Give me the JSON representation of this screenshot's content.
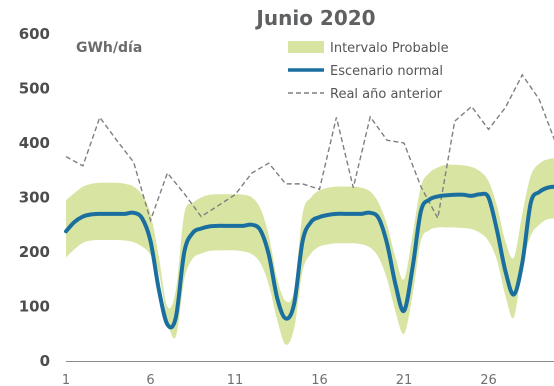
{
  "chart_data": {
    "type": "line",
    "title": "Junio 2020",
    "ylabel": "GWh/día",
    "xlabel": "",
    "ylim": [
      0,
      600
    ],
    "xlim": [
      1,
      30
    ],
    "yticks": [
      0,
      100,
      200,
      300,
      400,
      500,
      600
    ],
    "xticks": [
      1,
      6,
      11,
      16,
      21,
      26
    ],
    "grid": false,
    "legend_position": "top-right",
    "series": [
      {
        "name": "Intervalo Probable",
        "type": "band",
        "color": "#d7e4a2",
        "x": [
          1,
          1.5,
          2,
          2.5,
          3,
          3.5,
          4,
          4.5,
          5,
          5.5,
          6,
          6.5,
          7,
          7.5,
          8,
          8.5,
          9,
          9.5,
          10,
          10.5,
          11,
          11.5,
          12,
          12.5,
          13,
          13.5,
          14,
          14.5,
          15,
          15.5,
          16,
          16.5,
          17,
          17.5,
          18,
          18.5,
          19,
          19.5,
          20,
          20.5,
          21,
          21.5,
          22,
          22.5,
          23,
          23.5,
          24,
          24.5,
          25,
          25.5,
          26,
          26.5,
          27,
          27.5,
          28,
          28.5,
          29,
          29.5,
          30
        ],
        "lower": [
          190,
          205,
          217,
          221,
          222,
          222,
          222,
          221,
          218,
          210,
          195,
          160,
          75,
          45,
          150,
          188,
          197,
          202,
          203,
          203,
          203,
          201,
          196,
          180,
          140,
          75,
          30,
          60,
          165,
          197,
          210,
          214,
          216,
          216,
          216,
          214,
          208,
          190,
          150,
          90,
          50,
          120,
          220,
          240,
          245,
          245,
          245,
          244,
          242,
          235,
          220,
          185,
          120,
          80,
          175,
          230,
          250,
          260,
          262
        ],
        "upper": [
          295,
          308,
          320,
          325,
          327,
          327,
          327,
          325,
          320,
          305,
          270,
          190,
          100,
          130,
          270,
          290,
          300,
          305,
          306,
          306,
          306,
          305,
          300,
          280,
          230,
          150,
          110,
          130,
          270,
          300,
          313,
          318,
          320,
          320,
          320,
          318,
          311,
          290,
          250,
          190,
          150,
          230,
          320,
          345,
          355,
          360,
          360,
          359,
          356,
          348,
          330,
          285,
          220,
          190,
          270,
          340,
          362,
          370,
          372
        ]
      },
      {
        "name": "Escenario normal",
        "type": "line",
        "color": "#1b6f9f",
        "x": [
          1,
          1.5,
          2,
          2.5,
          3,
          3.5,
          4,
          4.5,
          5,
          5.5,
          6,
          6.5,
          7,
          7.5,
          8,
          8.5,
          9,
          9.5,
          10,
          10.5,
          11,
          11.5,
          12,
          12.5,
          13,
          13.5,
          14,
          14.5,
          15,
          15.5,
          16,
          16.5,
          17,
          17.5,
          18,
          18.5,
          19,
          19.5,
          20,
          20.5,
          21,
          21.5,
          22,
          22.5,
          23,
          23.5,
          24,
          24.5,
          25,
          25.5,
          26,
          26.5,
          27,
          27.5,
          28,
          28.5,
          29,
          29.5,
          30
        ],
        "values": [
          238,
          255,
          265,
          269,
          270,
          270,
          270,
          270,
          272,
          262,
          220,
          130,
          67,
          80,
          200,
          235,
          243,
          247,
          248,
          248,
          248,
          248,
          250,
          240,
          195,
          115,
          78,
          105,
          220,
          255,
          264,
          268,
          270,
          270,
          270,
          270,
          272,
          262,
          215,
          140,
          92,
          170,
          275,
          296,
          302,
          304,
          305,
          305,
          303,
          306,
          300,
          240,
          165,
          122,
          180,
          290,
          310,
          318,
          320
        ]
      },
      {
        "name": "Real año anterior",
        "type": "line",
        "style": "dashed",
        "color": "#7f7f7f",
        "x": [
          1,
          2,
          3,
          4,
          5,
          6,
          7,
          8,
          9,
          10,
          11,
          12,
          13,
          14,
          15,
          16,
          17,
          18,
          19,
          20,
          21,
          22,
          23,
          24,
          25,
          26,
          27,
          28,
          29,
          30
        ],
        "values": [
          375,
          358,
          447,
          405,
          365,
          258,
          345,
          307,
          265,
          285,
          305,
          345,
          363,
          325,
          325,
          315,
          447,
          318,
          448,
          405,
          400,
          320,
          262,
          440,
          467,
          425,
          465,
          525,
          480,
          398
        ]
      }
    ]
  }
}
